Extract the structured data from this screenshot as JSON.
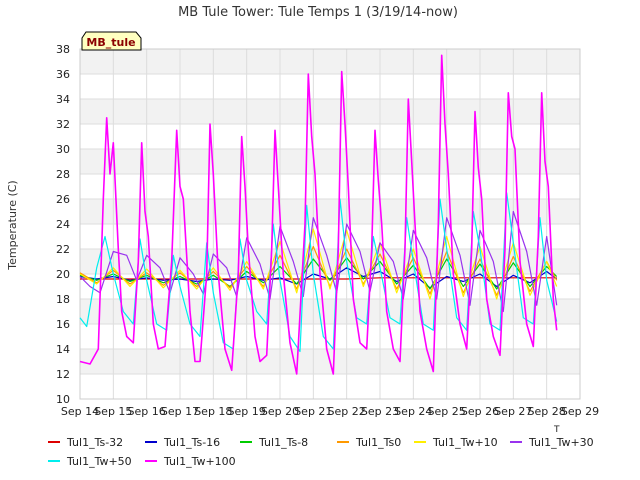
{
  "chart_data": {
    "type": "line",
    "title": "MB Tule Tower: Tule Temps 1 (3/19/14-now)",
    "ylabel": "Temperature (C)",
    "xlabel": "",
    "x_unit_hint": "T",
    "station_badge": "MB_tule",
    "ylim": [
      10,
      38
    ],
    "yticks": [
      10,
      12,
      14,
      16,
      18,
      20,
      22,
      24,
      26,
      28,
      30,
      32,
      34,
      36,
      38
    ],
    "xlim": [
      14,
      29
    ],
    "xticks": [
      {
        "v": 14,
        "label": "Sep 14"
      },
      {
        "v": 15,
        "label": "Sep 15"
      },
      {
        "v": 16,
        "label": "Sep 16"
      },
      {
        "v": 17,
        "label": "Sep 17"
      },
      {
        "v": 18,
        "label": "Sep 18"
      },
      {
        "v": 19,
        "label": "Sep 19"
      },
      {
        "v": 20,
        "label": "Sep 20"
      },
      {
        "v": 21,
        "label": "Sep 21"
      },
      {
        "v": 22,
        "label": "Sep 22"
      },
      {
        "v": 23,
        "label": "Sep 23"
      },
      {
        "v": 24,
        "label": "Sep 24"
      },
      {
        "v": 25,
        "label": "Sep 25"
      },
      {
        "v": 26,
        "label": "Sep 26"
      },
      {
        "v": 27,
        "label": "Sep 27"
      },
      {
        "v": 28,
        "label": "Sep 28"
      },
      {
        "v": 29,
        "label": "Sep 29"
      }
    ],
    "grid": true,
    "legend_position": "bottom",
    "series": [
      {
        "name": "Tul1_Ts-32",
        "color": "#dd0000",
        "width": 1.2,
        "x": [
          14.0,
          15.0,
          16.0,
          17.0,
          18.0,
          19.0,
          20.0,
          21.0,
          22.0,
          23.0,
          24.0,
          25.0,
          26.0,
          27.0,
          28.0,
          28.3
        ],
        "y": [
          19.6,
          19.6,
          19.6,
          19.6,
          19.6,
          19.6,
          19.6,
          19.6,
          19.6,
          19.7,
          19.7,
          19.7,
          19.7,
          19.7,
          19.7,
          19.7
        ]
      },
      {
        "name": "Tul1_Ts-16",
        "color": "#0000cc",
        "width": 1.2,
        "x": [
          14.0,
          14.5,
          15.0,
          15.5,
          16.0,
          16.5,
          17.0,
          17.5,
          18.0,
          18.5,
          19.0,
          19.5,
          20.0,
          20.5,
          21.0,
          21.5,
          22.0,
          22.5,
          23.0,
          23.5,
          24.0,
          24.5,
          25.0,
          25.5,
          26.0,
          26.5,
          27.0,
          27.5,
          28.0,
          28.3
        ],
        "y": [
          19.8,
          19.6,
          19.8,
          19.5,
          19.7,
          19.5,
          19.6,
          19.4,
          19.6,
          19.5,
          19.8,
          19.5,
          19.7,
          19.2,
          20.0,
          19.6,
          20.5,
          19.8,
          20.2,
          19.4,
          20.0,
          18.9,
          19.8,
          19.4,
          20.0,
          19.0,
          19.9,
          19.3,
          20.2,
          19.6
        ]
      },
      {
        "name": "Tul1_Ts-8",
        "color": "#00cc00",
        "width": 1.2,
        "x": [
          14.0,
          14.5,
          15.0,
          15.5,
          16.0,
          16.5,
          17.0,
          17.5,
          18.0,
          18.5,
          19.0,
          19.5,
          20.0,
          20.5,
          21.0,
          21.5,
          22.0,
          22.5,
          23.0,
          23.5,
          24.0,
          24.5,
          25.0,
          25.5,
          26.0,
          26.5,
          27.0,
          27.5,
          28.0,
          28.3
        ],
        "y": [
          19.9,
          19.5,
          20.0,
          19.4,
          19.9,
          19.3,
          19.8,
          19.2,
          19.9,
          19.0,
          20.2,
          19.3,
          20.6,
          19.2,
          21.2,
          19.5,
          21.3,
          19.6,
          21.0,
          19.2,
          20.7,
          18.8,
          21.2,
          19.0,
          20.8,
          18.8,
          20.9,
          19.0,
          20.6,
          19.8
        ]
      },
      {
        "name": "Tul1_Ts0",
        "color": "#ff9900",
        "width": 1.2,
        "x": [
          14.0,
          14.5,
          15.0,
          15.5,
          16.0,
          16.5,
          17.0,
          17.5,
          18.0,
          18.5,
          19.0,
          19.5,
          20.0,
          20.5,
          21.0,
          21.5,
          22.0,
          22.5,
          23.0,
          23.5,
          24.0,
          24.5,
          25.0,
          25.5,
          26.0,
          26.5,
          27.0,
          27.5,
          28.0,
          28.3
        ],
        "y": [
          20.1,
          19.3,
          20.3,
          19.2,
          20.1,
          19.1,
          20.1,
          19.0,
          20.2,
          18.9,
          20.6,
          19.0,
          21.5,
          18.8,
          22.2,
          19.0,
          22.0,
          19.2,
          21.6,
          18.8,
          21.3,
          18.4,
          21.8,
          18.5,
          21.2,
          18.3,
          21.4,
          18.6,
          21.0,
          19.5
        ]
      },
      {
        "name": "Tul1_Tw+10",
        "color": "#ffee00",
        "width": 1.2,
        "x": [
          14.0,
          14.5,
          15.0,
          15.5,
          16.0,
          16.5,
          17.0,
          17.5,
          18.0,
          18.5,
          19.0,
          19.5,
          20.0,
          20.5,
          21.0,
          21.5,
          22.0,
          22.5,
          23.0,
          23.5,
          24.0,
          24.5,
          25.0,
          25.5,
          26.0,
          26.5,
          27.0,
          27.5,
          28.0,
          28.3
        ],
        "y": [
          20.0,
          19.2,
          20.5,
          19.0,
          20.4,
          18.9,
          20.3,
          18.8,
          20.5,
          18.7,
          21.0,
          18.8,
          22.6,
          18.5,
          23.6,
          18.8,
          23.5,
          19.0,
          22.5,
          18.5,
          22.0,
          18.0,
          23.0,
          18.2,
          22.2,
          18.0,
          22.5,
          18.3,
          21.0,
          19.0
        ]
      },
      {
        "name": "Tul1_Tw+30",
        "color": "#9933ee",
        "width": 1.2,
        "x": [
          14.0,
          14.3,
          14.6,
          15.0,
          15.4,
          15.7,
          16.0,
          16.4,
          16.7,
          17.0,
          17.4,
          17.7,
          18.0,
          18.4,
          18.7,
          19.0,
          19.4,
          19.7,
          20.0,
          20.4,
          20.7,
          21.0,
          21.4,
          21.7,
          22.0,
          22.4,
          22.7,
          23.0,
          23.4,
          23.7,
          24.0,
          24.4,
          24.7,
          25.0,
          25.4,
          25.7,
          26.0,
          26.4,
          26.7,
          27.0,
          27.4,
          27.7,
          28.0,
          28.3
        ],
        "y": [
          19.8,
          19.0,
          18.5,
          21.8,
          21.5,
          19.5,
          21.5,
          20.5,
          18.5,
          21.3,
          20.0,
          18.4,
          21.6,
          20.5,
          18.2,
          22.9,
          20.8,
          18.0,
          23.8,
          21.0,
          18.2,
          24.5,
          21.5,
          18.5,
          24.0,
          21.8,
          18.6,
          22.5,
          21.0,
          18.0,
          23.5,
          21.3,
          18.0,
          24.5,
          21.5,
          17.5,
          23.5,
          21.0,
          17.0,
          25.0,
          21.8,
          17.5,
          23.0,
          17.5
        ]
      },
      {
        "name": "Tul1_Tw+50",
        "color": "#00eeee",
        "width": 1.2,
        "x": [
          14.0,
          14.2,
          14.5,
          14.75,
          15.0,
          15.3,
          15.6,
          15.8,
          16.0,
          16.3,
          16.6,
          16.8,
          17.0,
          17.3,
          17.6,
          17.8,
          18.0,
          18.3,
          18.6,
          18.8,
          19.0,
          19.3,
          19.6,
          19.8,
          20.0,
          20.3,
          20.6,
          20.8,
          21.0,
          21.3,
          21.6,
          21.8,
          22.0,
          22.3,
          22.6,
          22.8,
          23.0,
          23.3,
          23.6,
          23.8,
          24.0,
          24.3,
          24.6,
          24.8,
          25.0,
          25.3,
          25.6,
          25.8,
          26.0,
          26.3,
          26.6,
          26.8,
          27.0,
          27.3,
          27.6,
          27.8,
          28.0,
          28.3
        ],
        "y": [
          16.5,
          15.8,
          20.5,
          23.0,
          20.0,
          17.0,
          16.0,
          22.8,
          19.5,
          16.0,
          15.5,
          21.5,
          19.0,
          16.0,
          15.0,
          22.5,
          18.5,
          14.5,
          14.0,
          22.8,
          19.5,
          17.0,
          16.0,
          24.0,
          19.5,
          15.0,
          13.8,
          25.5,
          20.0,
          15.0,
          14.0,
          26.0,
          21.0,
          16.5,
          16.0,
          23.0,
          20.5,
          16.5,
          16.0,
          24.5,
          21.0,
          16.0,
          15.5,
          26.0,
          22.0,
          16.5,
          15.5,
          25.0,
          22.0,
          16.0,
          15.5,
          26.5,
          22.5,
          16.5,
          16.0,
          24.5,
          19.5,
          16.2
        ]
      },
      {
        "name": "Tul1_Tw+100",
        "color": "#ff00ff",
        "width": 1.6,
        "x": [
          14.0,
          14.3,
          14.55,
          14.7,
          14.8,
          14.9,
          15.0,
          15.15,
          15.25,
          15.4,
          15.6,
          15.75,
          15.85,
          15.95,
          16.05,
          16.2,
          16.35,
          16.55,
          16.75,
          16.9,
          17.0,
          17.1,
          17.3,
          17.45,
          17.6,
          17.8,
          17.9,
          18.0,
          18.15,
          18.35,
          18.55,
          18.75,
          18.85,
          18.95,
          19.05,
          19.25,
          19.4,
          19.6,
          19.75,
          19.85,
          19.95,
          20.1,
          20.3,
          20.5,
          20.75,
          20.85,
          20.95,
          21.05,
          21.2,
          21.4,
          21.6,
          21.75,
          21.85,
          21.95,
          22.05,
          22.2,
          22.4,
          22.6,
          22.75,
          22.85,
          22.95,
          23.05,
          23.2,
          23.4,
          23.6,
          23.75,
          23.85,
          23.95,
          24.05,
          24.2,
          24.4,
          24.6,
          24.75,
          24.85,
          24.95,
          25.05,
          25.2,
          25.4,
          25.6,
          25.75,
          25.85,
          25.95,
          26.05,
          26.2,
          26.4,
          26.6,
          26.75,
          26.85,
          26.95,
          27.05,
          27.2,
          27.4,
          27.6,
          27.75,
          27.85,
          27.95,
          28.05,
          28.2,
          28.3
        ],
        "y": [
          13.0,
          12.8,
          14.0,
          26.0,
          32.5,
          28.0,
          30.5,
          22.0,
          17.0,
          15.0,
          14.5,
          21.0,
          30.5,
          25.0,
          23.0,
          16.0,
          14.0,
          14.2,
          21.0,
          31.5,
          27.0,
          26.0,
          17.0,
          13.0,
          13.0,
          20.0,
          32.0,
          28.0,
          20.0,
          14.0,
          12.3,
          20.0,
          31.0,
          27.0,
          22.0,
          15.0,
          13.0,
          13.5,
          22.0,
          31.5,
          27.0,
          20.0,
          14.5,
          12.0,
          24.0,
          36.0,
          31.0,
          28.0,
          20.0,
          14.0,
          12.0,
          22.0,
          36.2,
          32.0,
          27.0,
          18.0,
          14.5,
          14.0,
          22.0,
          31.5,
          27.5,
          24.0,
          17.0,
          14.0,
          13.0,
          22.0,
          34.0,
          29.0,
          24.0,
          17.0,
          14.0,
          12.2,
          24.0,
          37.5,
          32.0,
          28.0,
          20.0,
          16.0,
          14.0,
          22.0,
          33.0,
          28.5,
          26.0,
          18.0,
          15.0,
          13.5,
          22.0,
          34.5,
          31.0,
          30.0,
          21.0,
          16.0,
          14.2,
          23.0,
          34.5,
          29.0,
          27.0,
          18.0,
          15.5
        ]
      }
    ]
  }
}
